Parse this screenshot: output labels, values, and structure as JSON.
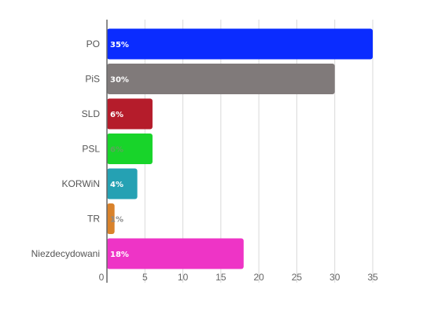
{
  "chart_data": {
    "type": "bar",
    "orientation": "horizontal",
    "categories": [
      "PO",
      "PiS",
      "SLD",
      "PSL",
      "KORWiN",
      "TR",
      "Niezdecydowani"
    ],
    "values": [
      35,
      30,
      6,
      6,
      4,
      1,
      18
    ],
    "data_labels": [
      "35%",
      "30%",
      "6%",
      "6%",
      "4%",
      "1%",
      "18%"
    ],
    "colors": [
      "#0a2cff",
      "#807a7a",
      "#b51c2b",
      "#18d42a",
      "#25a1b3",
      "#d9822b",
      "#ee34c6"
    ],
    "label_colors": [
      "#ffffff",
      "#ffffff",
      "#ffffff",
      "#5aa85a",
      "#ffffff",
      "#8a8a8a",
      "#ffffff"
    ],
    "xlim": [
      0,
      35
    ],
    "x_ticks": [
      0,
      5,
      10,
      15,
      20,
      25,
      30,
      35
    ],
    "grid": true,
    "legend": "none",
    "title": "",
    "xlabel": "",
    "ylabel": ""
  }
}
